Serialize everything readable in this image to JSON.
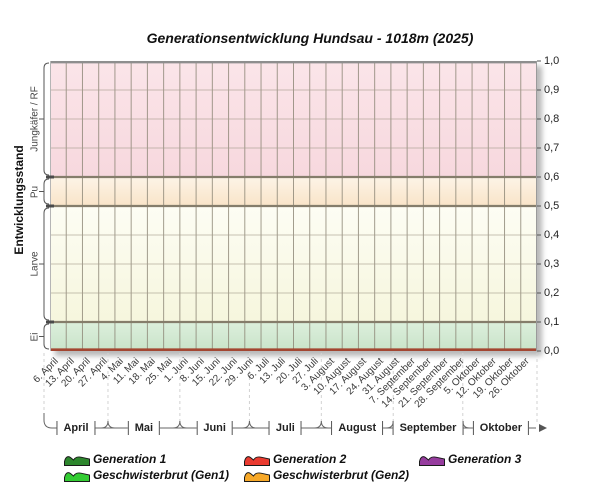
{
  "title": "Generationsentwicklung Hundsau - 1018m (2025)",
  "y_axis": {
    "label": "Entwicklungsstand",
    "tick_labels": [
      "1,0",
      "0,9",
      "0,8",
      "0,7",
      "0,6",
      "0,5",
      "0,4",
      "0,3",
      "0,2",
      "0,1",
      "0,0"
    ]
  },
  "month_axis": {
    "months": [
      "April",
      "Mai",
      "Juni",
      "Juli",
      "August",
      "September",
      "Oktober"
    ]
  },
  "legend": {
    "items": [
      {
        "label": "Generation 1",
        "color": "#2d862d"
      },
      {
        "label": "Generation 2",
        "color": "#ea3b30"
      },
      {
        "label": "Generation 3",
        "color": "#963c9e"
      },
      {
        "label": "Geschwisterbrut (Gen1)",
        "color": "#33cc33"
      },
      {
        "label": "Geschwisterbrut (Gen2)",
        "color": "#f6a828"
      }
    ]
  },
  "chart_data": {
    "type": "area",
    "title": "Generationsentwicklung Hundsau - 1018m (2025)",
    "ylabel": "Entwicklungsstand",
    "ylim": [
      0.0,
      1.0
    ],
    "y_tick_step": 0.1,
    "grid": true,
    "legend_position": "bottom",
    "x_tick_labels": [
      "6. April",
      "13. April",
      "20. April",
      "27. April",
      "4. Mai",
      "11. Mai",
      "18. Mai",
      "25. Mai",
      "1. Juni",
      "8. Juni",
      "15. Juni",
      "22. Juni",
      "29. Juni",
      "6. Juli",
      "13. Juli",
      "20. Juli",
      "27. Juli",
      "3. August",
      "10. August",
      "17. August",
      "24. August",
      "31. August",
      "7. September",
      "14. September",
      "21. September",
      "28. September",
      "5. Oktober",
      "12. Oktober",
      "19. Oktober",
      "26. Oktober"
    ],
    "stage_bands": [
      {
        "label": "Jungkäfer / RF",
        "range": [
          0.6,
          1.0
        ],
        "color_top": "#fbe5e9",
        "color_bottom": "#f7d8de"
      },
      {
        "label": "Pu",
        "range": [
          0.5,
          0.6
        ],
        "color_top": "#fdf4e7",
        "color_bottom": "#f9e4c8"
      },
      {
        "label": "Larve",
        "range": [
          0.1,
          0.5
        ],
        "color_top": "#fdfdf4",
        "color_bottom": "#f6f6dd"
      },
      {
        "label": "Ei",
        "range": [
          0.0,
          0.1
        ],
        "color_top": "#dcefdc",
        "color_bottom": "#c9e3c9"
      }
    ],
    "series": [
      {
        "name": "Generation 1",
        "color": "#2d862d",
        "values": []
      },
      {
        "name": "Generation 2",
        "color": "#ea3b30",
        "values": []
      },
      {
        "name": "Generation 3",
        "color": "#963c9e",
        "values": []
      },
      {
        "name": "Geschwisterbrut (Gen1)",
        "color": "#33cc33",
        "values": []
      },
      {
        "name": "Geschwisterbrut (Gen2)",
        "color": "#f6a828",
        "values": []
      }
    ]
  }
}
